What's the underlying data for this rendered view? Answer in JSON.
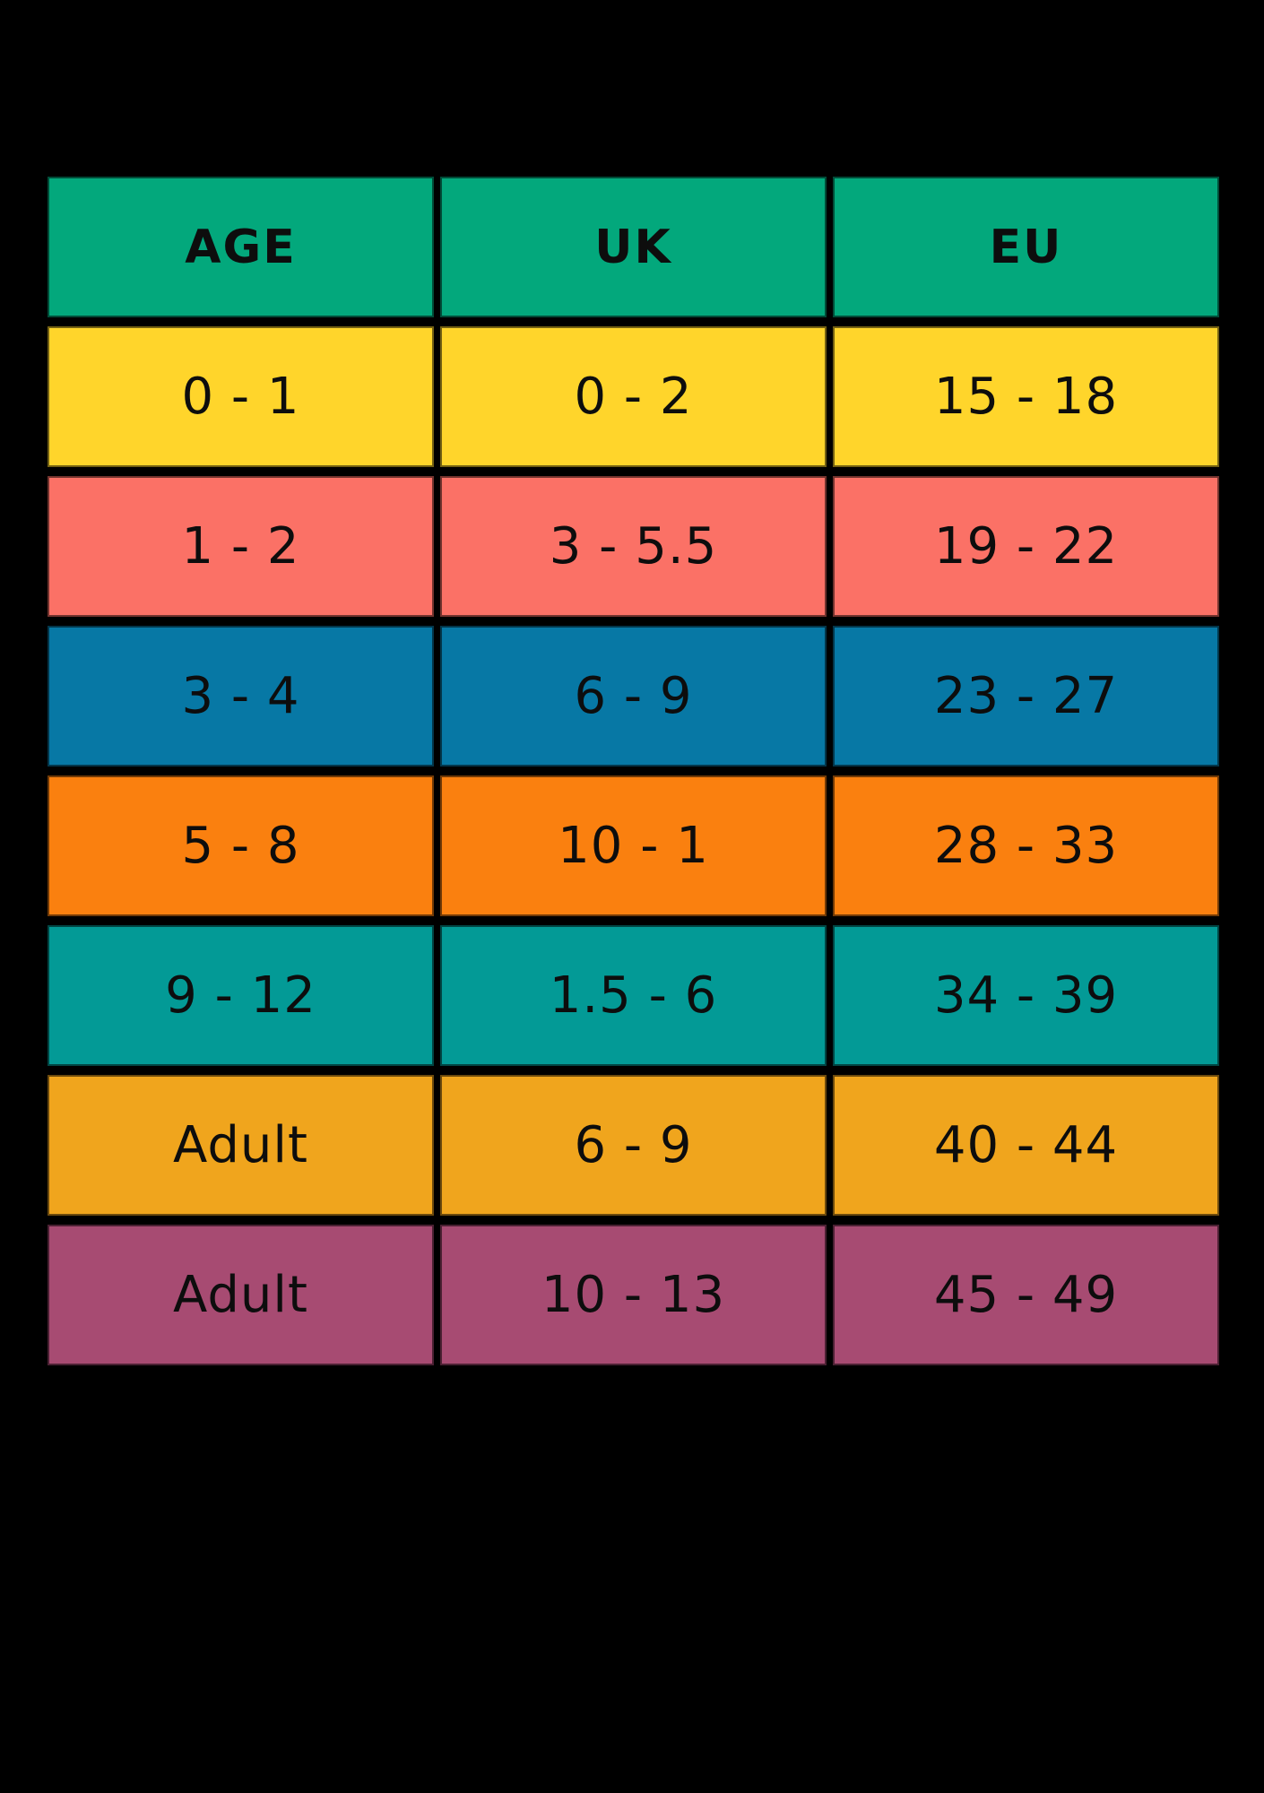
{
  "chart_data": {
    "type": "table",
    "columns": [
      "AGE",
      "UK",
      "EU"
    ],
    "rows": [
      [
        "0 - 1",
        "0 - 2",
        "15 - 18"
      ],
      [
        "1 - 2",
        "3 - 5.5",
        "19 - 22"
      ],
      [
        "3 - 4",
        "6 - 9",
        "23 - 27"
      ],
      [
        "5 - 8",
        "10 - 1",
        "28 - 33"
      ],
      [
        "9 - 12",
        "1.5 - 6",
        "34 - 39"
      ],
      [
        "Adult",
        "6 - 9",
        "40 - 44"
      ],
      [
        "Adult",
        "10 - 13",
        "45 - 49"
      ]
    ],
    "legend": "none",
    "grid": "black gaps between solid colored cells"
  },
  "style": {
    "page_bg": "#000000",
    "header_bg": "#03A87C",
    "row_bgs": [
      "#FFD52B",
      "#FB7166",
      "#0778A5",
      "#FA800F",
      "#039A96",
      "#F0A51D",
      "#A74B72"
    ],
    "text_color": "#0d0d0d"
  }
}
